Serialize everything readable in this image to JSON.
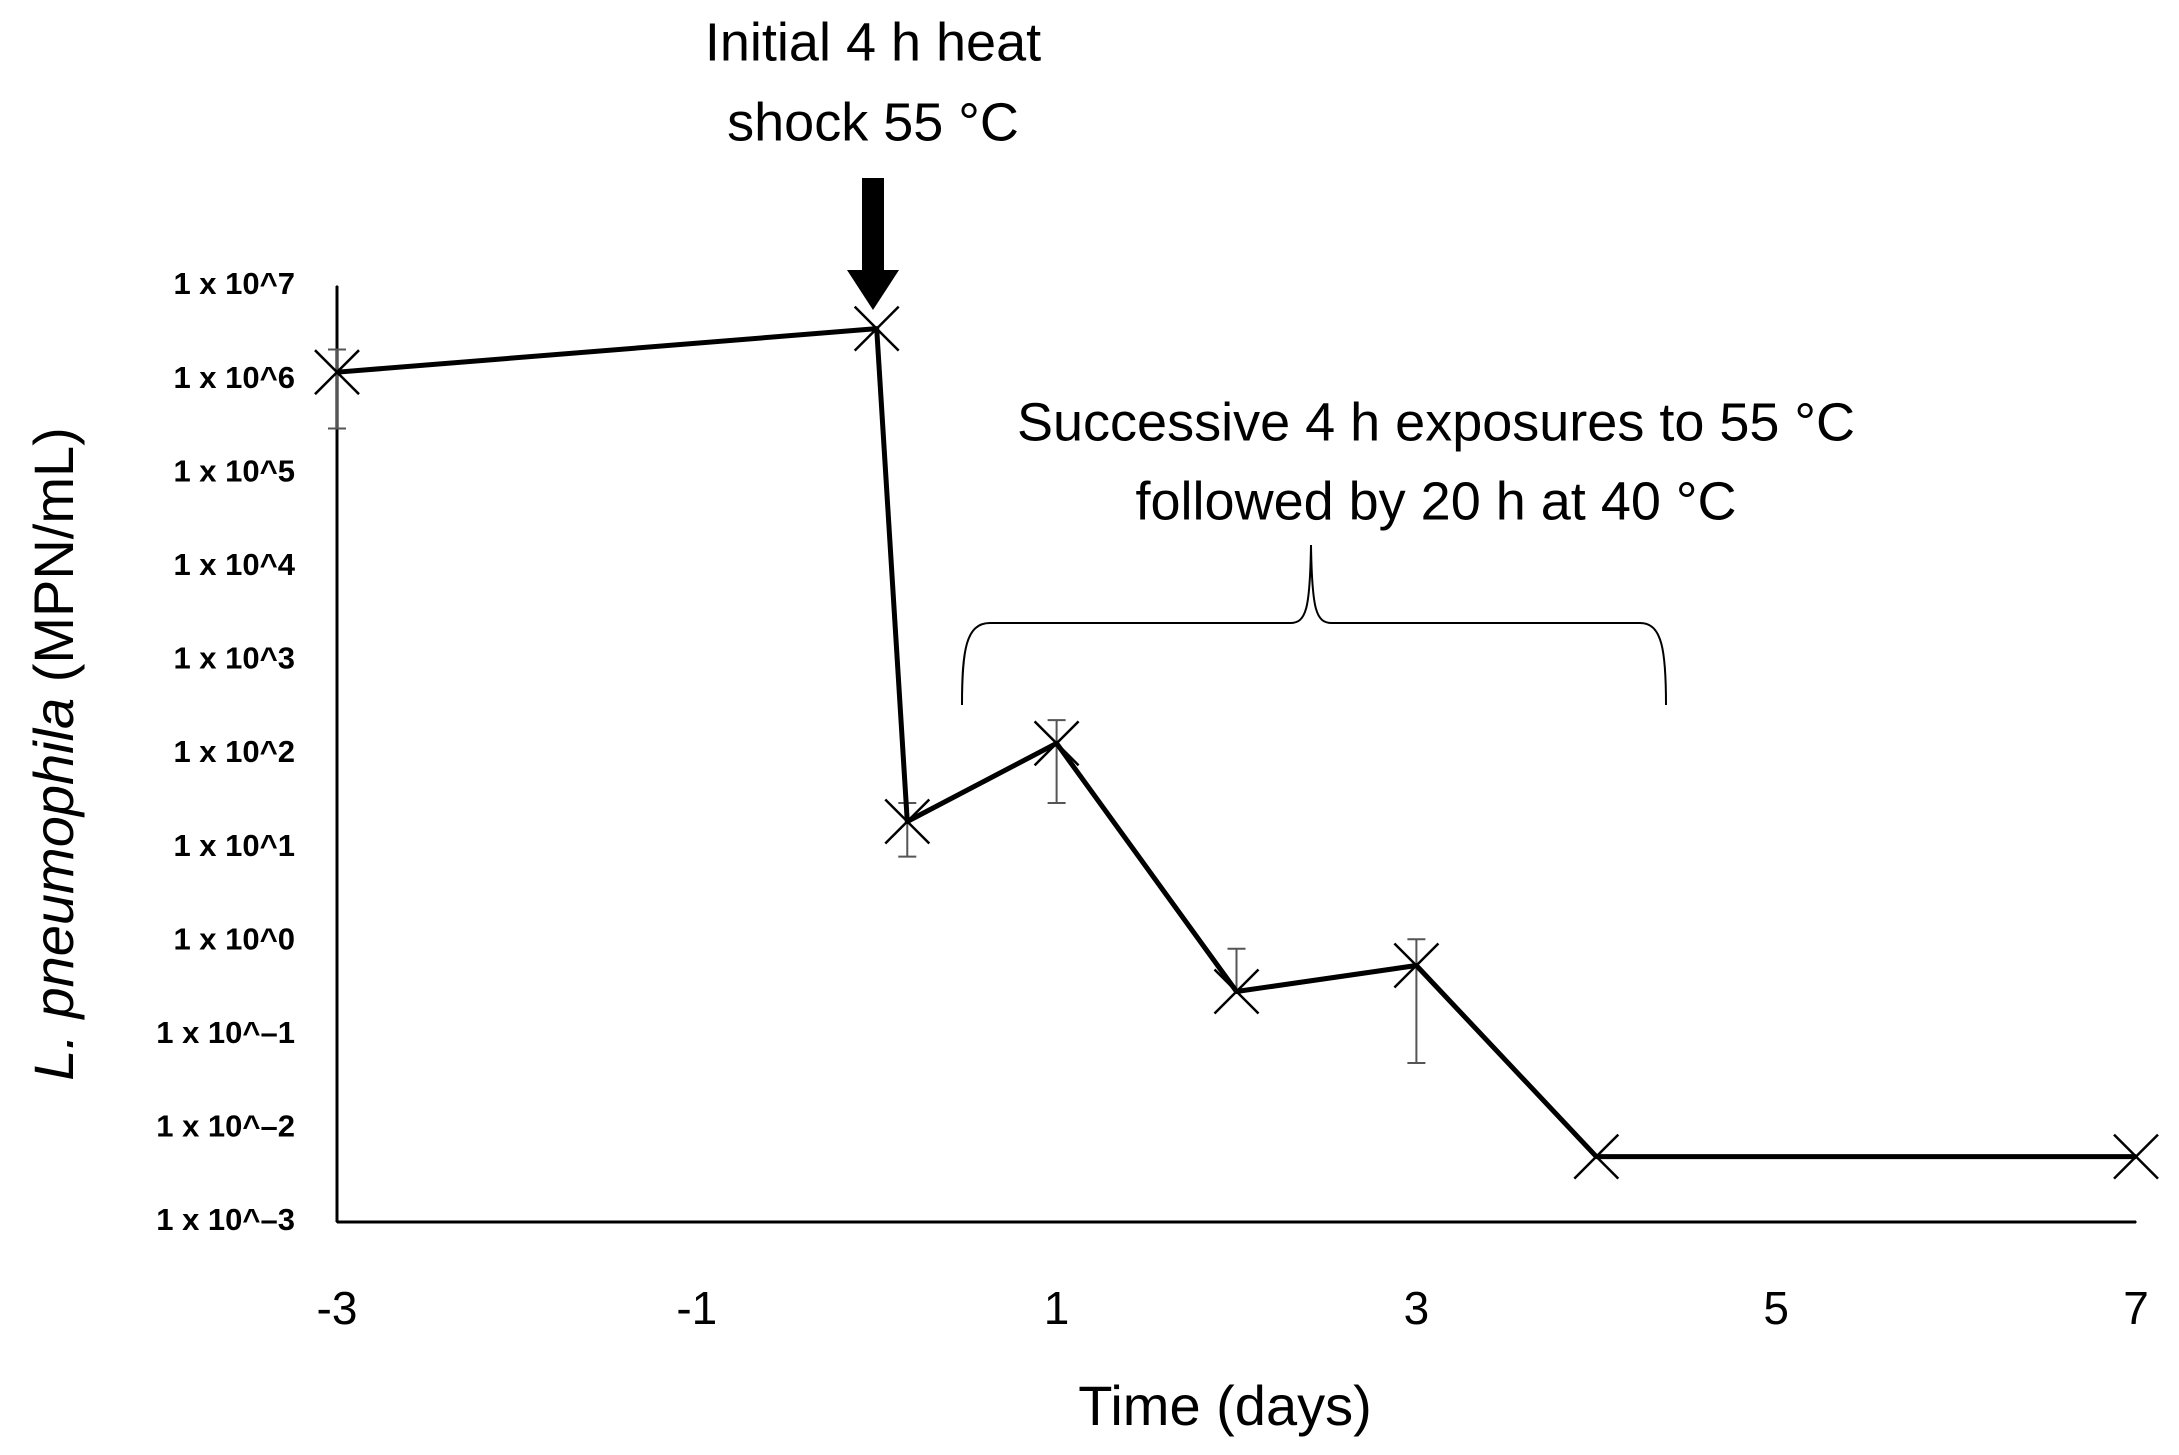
{
  "chart_data": {
    "type": "line",
    "xlabel": "Time (days)",
    "ylabel": [
      "L. pneumophila",
      "(MPN/mL)"
    ],
    "annotations": [
      [
        "Initial 4 h heat",
        "shock 55 °C"
      ],
      [
        "Successive 4 h exposures to 55 °C",
        "followed by 20 h at 40 °C"
      ]
    ],
    "x": [
      -3,
      0,
      0.17,
      1,
      2,
      3,
      4,
      7
    ],
    "series": [
      {
        "color": "#000000",
        "values": [
          1200000,
          3500000,
          19,
          130,
          0.29,
          0.55,
          0.005,
          0.005
        ],
        "errors": [
          900000,
          null,
          11,
          100,
          0.54,
          0.5,
          null,
          null
        ]
      }
    ],
    "xlim": [
      -3,
      7
    ],
    "xticks": [
      -3,
      -1,
      1,
      3,
      5,
      7
    ],
    "ylog": true,
    "ylim": [
      0.001,
      10000000
    ],
    "yticks": [
      {
        "value": 10000000,
        "label": "1 x 10^7"
      },
      {
        "value": 1000000,
        "label": "1 x 10^6"
      },
      {
        "value": 100000,
        "label": "1 x 10^5"
      },
      {
        "value": 10000,
        "label": "1 x 10^4"
      },
      {
        "value": 1000,
        "label": "1 x 10^3"
      },
      {
        "value": 100,
        "label": "1 x 10^2"
      },
      {
        "value": 10,
        "label": "1 x 10^1"
      },
      {
        "value": 1,
        "label": "1 x 10^0"
      },
      {
        "value": 0.1,
        "label": "1 x 10^–1"
      },
      {
        "value": 0.01,
        "label": "1 x 10^–2"
      },
      {
        "value": 0.001,
        "label": "1 x 10^–3"
      }
    ],
    "grid": false
  }
}
